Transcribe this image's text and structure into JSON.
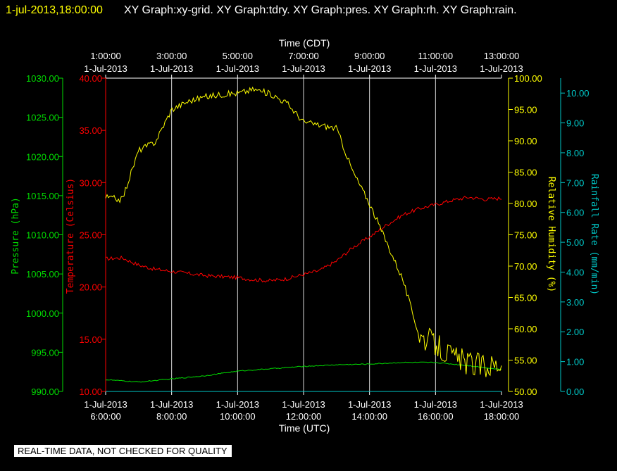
{
  "header": {
    "timestamp": "1-jul-2013,18:00:00",
    "title": "XY Graph:xy-grid.  XY Graph:tdry.  XY Graph:pres.  XY Graph:rh.  XY Graph:rain."
  },
  "disclaimer": "REAL-TIME DATA, NOT CHECKED FOR QUALITY",
  "colors": {
    "background": "#000000",
    "grid": "#ffffff",
    "temperature": "#ff0000",
    "pressure": "#00dd00",
    "humidity": "#ffff00",
    "rainfall": "#00c8c8",
    "frame": "#ffffff"
  },
  "chart_data": {
    "type": "line",
    "x_axis_bottom": {
      "title": "Time (UTC)",
      "ticks": [
        [
          "1-Jul-2013",
          "6:00:00"
        ],
        [
          "1-Jul-2013",
          "8:00:00"
        ],
        [
          "1-Jul-2013",
          "10:00:00"
        ],
        [
          "1-Jul-2013",
          "12:00:00"
        ],
        [
          "1-Jul-2013",
          "14:00:00"
        ],
        [
          "1-Jul-2013",
          "16:00:00"
        ],
        [
          "1-Jul-2013",
          "18:00:00"
        ]
      ],
      "range": [
        "1-Jul-2013 6:00:00",
        "1-Jul-2013 18:00:00"
      ]
    },
    "x_axis_top": {
      "title": "Time (CDT)",
      "ticks": [
        [
          "1:00:00",
          "1-Jul-2013"
        ],
        [
          "3:00:00",
          "1-Jul-2013"
        ],
        [
          "5:00:00",
          "1-Jul-2013"
        ],
        [
          "7:00:00",
          "1-Jul-2013"
        ],
        [
          "9:00:00",
          "1-Jul-2013"
        ],
        [
          "11:00:00",
          "1-Jul-2013"
        ],
        [
          "13:00:00",
          "1-Jul-2013"
        ]
      ]
    },
    "y_axes": {
      "pressure": {
        "title": "Pressure (hPa)",
        "ylim": [
          990,
          1030
        ],
        "ticks": [
          "990.00",
          "995.00",
          "1000.00",
          "1005.00",
          "1010.00",
          "1015.00",
          "1020.00",
          "1025.00",
          "1030.00"
        ]
      },
      "temperature": {
        "title": "Temperature (Celsius)",
        "ylim": [
          10,
          40
        ],
        "ticks": [
          "10.00",
          "15.00",
          "20.00",
          "25.00",
          "30.00",
          "35.00",
          "40.00"
        ]
      },
      "humidity": {
        "title": "Relative Humidity (%)",
        "ylim": [
          50,
          100
        ],
        "ticks": [
          "50.00",
          "55.00",
          "60.00",
          "65.00",
          "70.00",
          "75.00",
          "80.00",
          "85.00",
          "90.00",
          "95.00",
          "100.00"
        ]
      },
      "rainfall": {
        "title": "Rainfall Rate (mm/min)",
        "ylim": [
          0,
          10.5
        ],
        "ticks": [
          "0.00",
          "1.00",
          "2.00",
          "3.00",
          "4.00",
          "5.00",
          "6.00",
          "7.00",
          "8.00",
          "9.00",
          "10.00"
        ]
      }
    },
    "grid": true,
    "series": [
      {
        "axis": "temperature",
        "x": [
          "1-Jul-2013 06:00",
          "06:30",
          "07:00",
          "07:30",
          "08:00",
          "08:30",
          "09:00",
          "09:30",
          "10:00",
          "10:30",
          "11:00",
          "11:30",
          "12:00",
          "12:30",
          "13:00",
          "13:30",
          "14:00",
          "14:30",
          "15:00",
          "15:30",
          "16:00",
          "16:30",
          "17:00",
          "17:30",
          "18:00"
        ],
        "values": [
          22.7,
          22.8,
          22.1,
          21.7,
          21.5,
          21.3,
          21.1,
          21.0,
          20.9,
          20.7,
          20.6,
          20.8,
          21.2,
          21.6,
          22.5,
          23.8,
          24.8,
          25.9,
          26.9,
          27.5,
          27.9,
          28.3,
          28.6,
          28.4,
          28.5
        ]
      },
      {
        "axis": "pressure",
        "x": [
          "1-Jul-2013 06:00",
          "07:00",
          "08:00",
          "09:00",
          "10:00",
          "11:00",
          "12:00",
          "13:00",
          "14:00",
          "15:00",
          "16:00",
          "17:00",
          "18:00"
        ],
        "values": [
          991.5,
          991.2,
          991.6,
          992.0,
          992.6,
          992.9,
          993.2,
          993.4,
          993.5,
          993.7,
          993.7,
          993.3,
          992.8
        ]
      },
      {
        "axis": "humidity",
        "x": [
          "1-Jul-2013 06:00",
          "06:30",
          "07:00",
          "07:30",
          "08:00",
          "08:30",
          "09:00",
          "09:30",
          "10:00",
          "10:30",
          "11:00",
          "11:30",
          "12:00",
          "12:30",
          "13:00",
          "13:30",
          "14:00",
          "14:30",
          "15:00",
          "15:30",
          "16:00",
          "16:30",
          "17:00",
          "17:30",
          "18:00"
        ],
        "values": [
          81.0,
          80.6,
          88.5,
          89.8,
          95.0,
          96.3,
          97.0,
          97.4,
          97.6,
          98.2,
          97.5,
          96.0,
          93.0,
          92.5,
          92.0,
          85.0,
          80.0,
          74.0,
          68.0,
          59.0,
          57.5,
          55.5,
          54.5,
          54.0,
          54.5
        ]
      },
      {
        "axis": "rainfall",
        "x": [
          "1-Jul-2013 06:00",
          "18:00"
        ],
        "values": [
          0.0,
          0.0
        ]
      }
    ]
  }
}
